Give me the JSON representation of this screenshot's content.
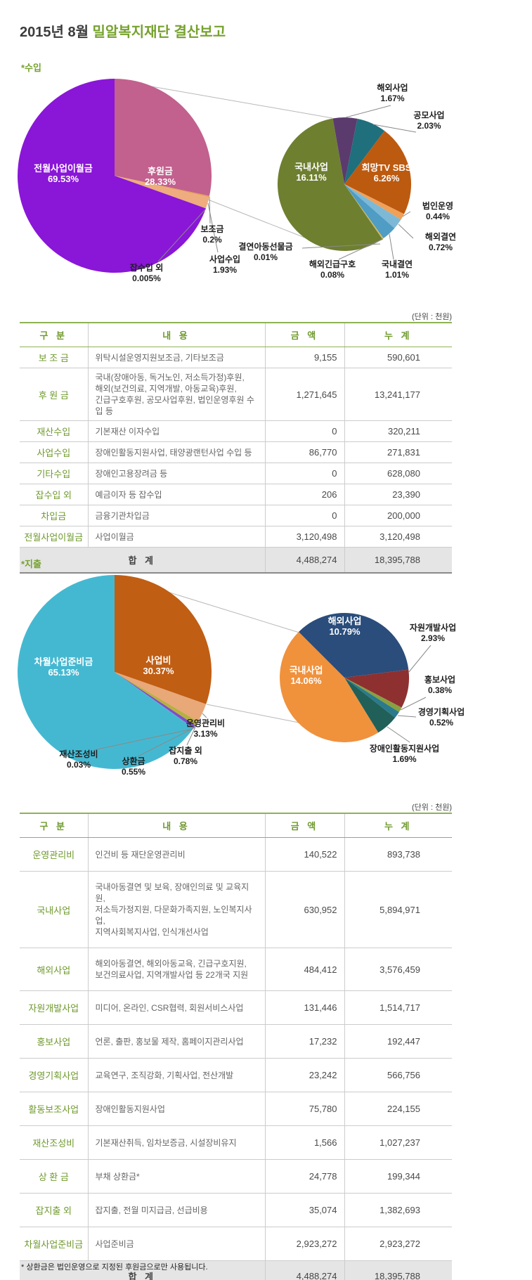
{
  "title": {
    "prefix": "2015년 8월 ",
    "main": "밀알복지재단 결산보고"
  },
  "unit_label": "(단위 : 천원)",
  "table_headers": [
    "구 분",
    "내 용",
    "금 액",
    "누 계"
  ],
  "footnote": "* 상환금은 법인운영으로 지정된 후원금으로만 사용됩니다.",
  "income": {
    "section_label": "*수입",
    "table": {
      "rows": [
        {
          "category": "보 조 금",
          "description": "위탁시설운영지원보조금, 기타보조금",
          "amount": "9,155",
          "total": "590,601"
        },
        {
          "category": "후 원 금",
          "description": "국내(장애아동, 독거노인, 저소득가정)후원,\n해외(보건의료, 지역개발, 아동교육)후원,\n긴급구호후원, 공모사업후원, 법인운영후원 수입 등",
          "amount": "1,271,645",
          "total": "13,241,177"
        },
        {
          "category": "재산수입",
          "description": "기본재산 이자수입",
          "amount": "0",
          "total": "320,211"
        },
        {
          "category": "사업수입",
          "description": "장애인활동지원사업, 태양광랜턴사업 수입 등",
          "amount": "86,770",
          "total": "271,831"
        },
        {
          "category": "기타수입",
          "description": "장애인고용장려금 등",
          "amount": "0",
          "total": "628,080"
        },
        {
          "category": "잡수입 외",
          "description": "예금이자 등 잡수입",
          "amount": "206",
          "total": "23,390"
        },
        {
          "category": "차입금",
          "description": "금융기관차입금",
          "amount": "0",
          "total": "200,000"
        },
        {
          "category": "전월사업이월금",
          "description": "사업이월금",
          "amount": "3,120,498",
          "total": "3,120,498"
        }
      ],
      "footer": {
        "label": "합 계",
        "amount": "4,488,274",
        "total": "18,395,788"
      }
    }
  },
  "expense": {
    "section_label": "*지출",
    "table": {
      "rows": [
        {
          "category": "운영관리비",
          "description": "인건비 등 재단운영관리비",
          "amount": "140,522",
          "total": "893,738"
        },
        {
          "category": "국내사업",
          "description": "국내아동결연 및 보육, 장애인의료 및 교육지원,\n저소득가정지원, 다문화가족지원, 노인복지사업,\n지역사회복지사업, 인식개선사업",
          "amount": "630,952",
          "total": "5,894,971"
        },
        {
          "category": "해외사업",
          "description": "해외아동결연, 해외아동교육, 긴급구호지원,\n보건의료사업, 지역개발사업 등 22개국 지원",
          "amount": "484,412",
          "total": "3,576,459"
        },
        {
          "category": "자원개발사업",
          "description": "미디어, 온라인, CSR협력, 회원서비스사업",
          "amount": "131,446",
          "total": "1,514,717"
        },
        {
          "category": "홍보사업",
          "description": "언론, 출판, 홍보물 제작, 홈페이지관리사업",
          "amount": "17,232",
          "total": "192,447"
        },
        {
          "category": "경영기획사업",
          "description": "교육연구, 조직강화, 기획사업, 전산개발",
          "amount": "23,242",
          "total": "566,756"
        },
        {
          "category": "활동보조사업",
          "description": "장애인활동지원사업",
          "amount": "75,780",
          "total": "224,155"
        },
        {
          "category": "재산조성비",
          "description": "기본재산취득, 임차보증금, 시설장비유지",
          "amount": "1,566",
          "total": "1,027,237"
        },
        {
          "category": "상 환 금",
          "description": "부채 상환금*",
          "amount": "24,778",
          "total": "199,344"
        },
        {
          "category": "잡지출 외",
          "description": "잡지출, 전월 미지급금, 선급비용",
          "amount": "35,074",
          "total": "1,382,693"
        },
        {
          "category": "차월사업준비금",
          "description": "사업준비금",
          "amount": "2,923,272",
          "total": "2,923,272"
        }
      ],
      "footer": {
        "label": "합 계",
        "amount": "4,488,274",
        "total": "18,395,788"
      }
    }
  },
  "chart_data": [
    {
      "id": "income-main",
      "type": "pie",
      "slices": [
        {
          "label": "후원금",
          "value": 28.33,
          "pct_label": "28.33%",
          "color": "#c2608e"
        },
        {
          "label": "보조금",
          "value": 0.2,
          "pct_label": "0.2%",
          "color": "#e09a50"
        },
        {
          "label": "사업수입",
          "value": 1.93,
          "pct_label": "1.93%",
          "color": "#efac7e"
        },
        {
          "label": "잡수입 외",
          "value": 0.005,
          "pct_label": "0.005%",
          "color": "#c8b84a"
        },
        {
          "label": "전월사업이월금",
          "value": 69.53,
          "pct_label": "69.53%",
          "color": "#8a16d8"
        }
      ]
    },
    {
      "id": "income-donation-breakdown",
      "type": "pie",
      "slices": [
        {
          "label": "해외사업",
          "value": 1.67,
          "pct_label": "1.67%",
          "color": "#5b3b6d"
        },
        {
          "label": "공모사업",
          "value": 2.03,
          "pct_label": "2.03%",
          "color": "#1f6f7d"
        },
        {
          "label": "희망TV SBS",
          "value": 6.26,
          "pct_label": "6.26%",
          "color": "#bc5a10"
        },
        {
          "label": "법인운영",
          "value": 0.44,
          "pct_label": "0.44%",
          "color": "#f0a058"
        },
        {
          "label": "해외결연",
          "value": 0.72,
          "pct_label": "0.72%",
          "color": "#7db9d6"
        },
        {
          "label": "국내결연",
          "value": 1.01,
          "pct_label": "1.01%",
          "color": "#4f9cc4"
        },
        {
          "label": "해외긴급구호",
          "value": 0.08,
          "pct_label": "0.08%",
          "color": "#d8b84a"
        },
        {
          "label": "결연아동선물금",
          "value": 0.01,
          "pct_label": "0.01%",
          "color": "#999999"
        },
        {
          "label": "국내사업",
          "value": 16.11,
          "pct_label": "16.11%",
          "color": "#6e7f30"
        }
      ]
    },
    {
      "id": "expense-main",
      "type": "pie",
      "slices": [
        {
          "label": "사업비",
          "value": 30.37,
          "pct_label": "30.37%",
          "color": "#c05e14"
        },
        {
          "label": "운영관리비",
          "value": 3.13,
          "pct_label": "3.13%",
          "color": "#e8a878"
        },
        {
          "label": "잡지출 외",
          "value": 0.78,
          "pct_label": "0.78%",
          "color": "#b8b040"
        },
        {
          "label": "상환금",
          "value": 0.55,
          "pct_label": "0.55%",
          "color": "#7a50c8"
        },
        {
          "label": "재산조성비",
          "value": 0.03,
          "pct_label": "0.03%",
          "color": "#d06090"
        },
        {
          "label": "차월사업준비금",
          "value": 65.13,
          "pct_label": "65.13%",
          "color": "#45b8d1"
        }
      ]
    },
    {
      "id": "expense-project-breakdown",
      "type": "pie",
      "slices": [
        {
          "label": "해외사업",
          "value": 10.79,
          "pct_label": "10.79%",
          "color": "#2a4d7c"
        },
        {
          "label": "자원개발사업",
          "value": 2.93,
          "pct_label": "2.93%",
          "color": "#8e3030"
        },
        {
          "label": "홍보사업",
          "value": 0.38,
          "pct_label": "0.38%",
          "color": "#88a040"
        },
        {
          "label": "경영기획사업",
          "value": 0.52,
          "pct_label": "0.52%",
          "color": "#2a7a8c"
        },
        {
          "label": "장애인활동지원사업",
          "value": 1.69,
          "pct_label": "1.69%",
          "color": "#206058"
        },
        {
          "label": "국내사업",
          "value": 14.06,
          "pct_label": "14.06%",
          "color": "#f0913c"
        }
      ]
    }
  ]
}
